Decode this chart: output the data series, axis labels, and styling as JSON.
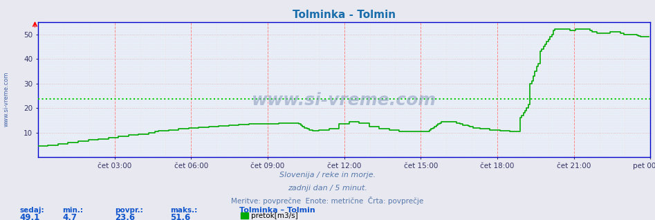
{
  "title": "Tolminka - Tolmin",
  "title_color": "#1a6eac",
  "bg_color": "#e8e8f0",
  "plot_bg_color": "#e8eef8",
  "ylim": [
    0,
    55
  ],
  "yticks": [
    10,
    20,
    30,
    40,
    50
  ],
  "line_color": "#00aa00",
  "avg_line_color": "#00cc00",
  "avg_value": 23.6,
  "grid_color_v": "#ff8888",
  "grid_color_h": "#ddaaaa",
  "grid_color_minor_h": "#eedddd",
  "axis_color": "#0000cc",
  "sidebar_text": "www.si-vreme.com",
  "footer_line1": "Slovenija / reke in morje.",
  "footer_line2": "zadnji dan / 5 minut.",
  "footer_line3": "Meritve: povprečne  Enote: metrične  Črta: povprečje",
  "footer_color": "#5577aa",
  "stats_labels": [
    "sedaj:",
    "min.:",
    "povpr.:",
    "maks.:"
  ],
  "stats_values": [
    "49,1",
    "4,7",
    "23,6",
    "51,6"
  ],
  "stats_color": "#1155cc",
  "legend_label": "pretok[m3/s]",
  "legend_color": "#00aa00",
  "station_label": "Tolminka – Tolmin",
  "xtick_labels": [
    "čet 03:00",
    "čet 06:00",
    "čet 09:00",
    "čet 12:00",
    "čet 15:00",
    "čet 18:00",
    "čet 21:00",
    "pet 00:00"
  ],
  "flow_data": [
    4.7,
    4.7,
    4.7,
    4.7,
    4.7,
    4.7,
    5.0,
    5.0,
    5.0,
    5.0,
    5.0,
    5.0,
    5.5,
    5.5,
    5.5,
    5.5,
    5.5,
    5.5,
    6.0,
    6.0,
    6.0,
    6.0,
    6.0,
    6.0,
    6.5,
    6.5,
    6.5,
    6.5,
    6.5,
    6.5,
    7.0,
    7.0,
    7.0,
    7.0,
    7.0,
    7.0,
    7.5,
    7.5,
    7.5,
    7.5,
    7.5,
    7.5,
    8.0,
    8.0,
    8.0,
    8.0,
    8.0,
    8.0,
    8.5,
    8.5,
    8.5,
    8.5,
    8.5,
    8.5,
    9.0,
    9.0,
    9.0,
    9.0,
    9.0,
    9.0,
    9.5,
    9.5,
    9.5,
    9.5,
    9.5,
    9.5,
    10.0,
    10.0,
    10.0,
    10.0,
    10.5,
    10.5,
    10.8,
    10.8,
    10.8,
    10.8,
    10.8,
    10.8,
    11.2,
    11.2,
    11.2,
    11.2,
    11.2,
    11.2,
    11.5,
    11.5,
    11.5,
    11.5,
    11.5,
    11.5,
    11.8,
    11.8,
    11.8,
    11.8,
    11.8,
    11.8,
    12.2,
    12.2,
    12.2,
    12.2,
    12.2,
    12.2,
    12.5,
    12.5,
    12.5,
    12.5,
    12.5,
    12.5,
    12.8,
    12.8,
    12.8,
    12.8,
    12.8,
    12.8,
    13.0,
    13.0,
    13.0,
    13.0,
    13.0,
    13.0,
    13.2,
    13.2,
    13.2,
    13.2,
    13.2,
    13.2,
    13.5,
    13.5,
    13.5,
    13.5,
    13.5,
    13.5,
    13.5,
    13.5,
    13.5,
    13.5,
    13.5,
    13.5,
    13.5,
    13.5,
    13.5,
    13.5,
    13.5,
    13.5,
    13.8,
    13.8,
    14.0,
    14.0,
    14.0,
    14.0,
    14.0,
    14.0,
    14.0,
    14.0,
    14.0,
    14.0,
    13.5,
    13.0,
    12.5,
    12.0,
    11.8,
    11.5,
    11.2,
    11.0,
    10.8,
    10.8,
    10.8,
    10.8,
    11.0,
    11.0,
    11.0,
    11.0,
    11.0,
    11.0,
    11.5,
    11.5,
    11.5,
    11.5,
    11.5,
    11.5,
    13.5,
    13.5,
    13.5,
    13.5,
    13.5,
    13.5,
    14.5,
    14.5,
    14.5,
    14.5,
    14.5,
    14.5,
    14.0,
    14.0,
    14.0,
    14.0,
    14.0,
    14.0,
    12.5,
    12.5,
    12.5,
    12.5,
    12.5,
    12.5,
    11.5,
    11.5,
    11.5,
    11.5,
    11.5,
    11.5,
    11.0,
    11.0,
    11.0,
    11.0,
    11.0,
    11.0,
    10.5,
    10.5,
    10.5,
    10.5,
    10.5,
    10.5,
    10.5,
    10.5,
    10.5,
    10.5,
    10.5,
    10.5,
    10.5,
    10.5,
    10.5,
    10.5,
    10.5,
    10.5,
    11.0,
    11.5,
    12.0,
    12.5,
    13.0,
    13.5,
    14.0,
    14.5,
    14.5,
    14.5,
    14.5,
    14.5,
    14.5,
    14.5,
    14.5,
    14.5,
    14.0,
    14.0,
    13.5,
    13.5,
    13.0,
    13.0,
    13.0,
    12.8,
    12.5,
    12.5,
    12.0,
    12.0,
    12.0,
    12.0,
    11.5,
    11.5,
    11.5,
    11.5,
    11.5,
    11.5,
    11.0,
    11.0,
    11.0,
    11.0,
    11.0,
    11.0,
    10.8,
    10.8,
    10.8,
    10.8,
    10.8,
    10.8,
    10.5,
    10.5,
    10.5,
    10.5,
    10.5,
    10.5,
    16.0,
    17.0,
    18.0,
    19.0,
    20.0,
    21.5,
    30.0,
    31.0,
    33.0,
    35.0,
    37.0,
    38.0,
    43.0,
    44.0,
    45.0,
    46.0,
    47.0,
    48.0,
    49.0,
    50.0,
    51.5,
    52.0,
    52.0,
    52.0,
    52.0,
    52.0,
    52.0,
    52.0,
    52.0,
    52.0,
    51.5,
    51.5,
    51.5,
    52.0,
    52.0,
    52.0,
    52.0,
    52.0,
    52.0,
    52.0,
    52.0,
    52.0,
    51.5,
    51.0,
    51.0,
    51.0,
    50.5,
    50.5,
    50.5,
    50.5,
    50.5,
    50.5,
    50.5,
    50.5,
    51.0,
    51.0,
    51.0,
    51.0,
    51.0,
    51.0,
    50.5,
    50.5,
    50.0,
    50.0,
    50.0,
    50.0,
    50.0,
    50.0,
    50.0,
    50.0,
    49.5,
    49.3,
    49.1,
    49.1,
    49.1,
    49.1,
    49.1,
    49.1
  ]
}
